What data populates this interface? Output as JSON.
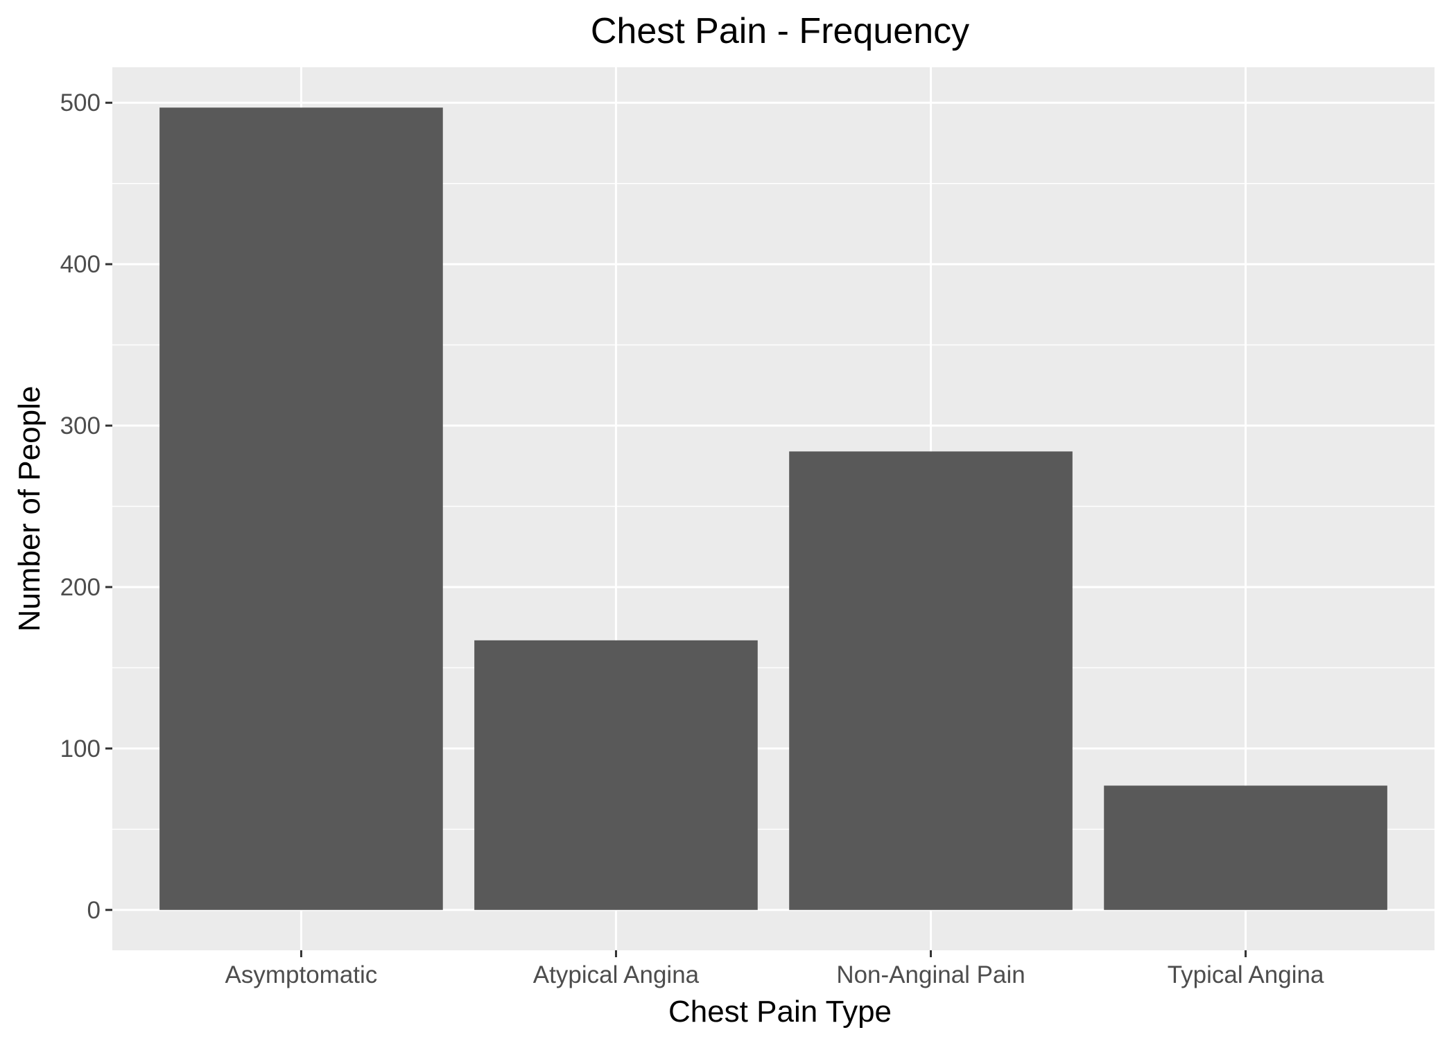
{
  "chart_data": {
    "type": "bar",
    "title": "Chest Pain - Frequency",
    "xlabel": "Chest Pain Type",
    "ylabel": "Number of People",
    "categories": [
      "Asymptomatic",
      "Atypical Angina",
      "Non-Anginal Pain",
      "Typical Angina"
    ],
    "values": [
      497,
      167,
      284,
      77
    ],
    "ylim": [
      -25,
      522
    ],
    "yticks": [
      0,
      100,
      200,
      300,
      400,
      500
    ],
    "ytick_labels": [
      "0",
      "100",
      "200",
      "300",
      "400",
      "500"
    ],
    "grid": true,
    "legend": "none",
    "colors": {
      "bar": "#595959",
      "panel": "#ebebeb",
      "grid": "#ffffff",
      "tick": "#333333",
      "tick_text": "#4d4d4d"
    }
  }
}
